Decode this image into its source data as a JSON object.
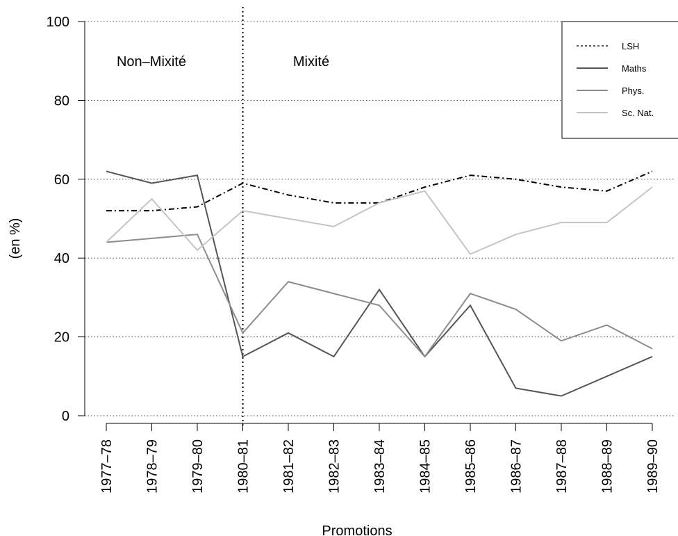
{
  "chart_data": {
    "type": "line",
    "title": "",
    "xlabel": "Promotions",
    "ylabel": "(en %)",
    "ylim": [
      0,
      100
    ],
    "yticks": [
      0,
      20,
      40,
      60,
      80,
      100
    ],
    "categories": [
      "1977–78",
      "1978–79",
      "1979–80",
      "1980–81",
      "1981–82",
      "1982–83",
      "1983–84",
      "1984–85",
      "1985–86",
      "1986–87",
      "1987–88",
      "1988–89",
      "1989–90"
    ],
    "grid": "horizontal dotted",
    "legend_position": "top-right",
    "divider_after_category": "1980–81",
    "annotations": [
      {
        "text": "Non–Mixité",
        "region": "left"
      },
      {
        "text": "Mixité",
        "region": "right"
      }
    ],
    "series": [
      {
        "name": "LSH",
        "style": "dotdash",
        "color": "#000000",
        "values": [
          52,
          52,
          53,
          59,
          56,
          54,
          54,
          58,
          61,
          60,
          58,
          57,
          62
        ]
      },
      {
        "name": "Maths",
        "style": "solid",
        "color": "#555555",
        "values": [
          62,
          59,
          61,
          15,
          21,
          15,
          32,
          15,
          28,
          7,
          5,
          10,
          15
        ]
      },
      {
        "name": "Phys.",
        "style": "solid",
        "color": "#8c8c8c",
        "values": [
          44,
          45,
          46,
          21,
          34,
          31,
          28,
          15,
          31,
          27,
          19,
          23,
          17
        ]
      },
      {
        "name": "Sc. Nat.",
        "style": "solid",
        "color": "#c4c4c4",
        "values": [
          44,
          55,
          42,
          52,
          50,
          48,
          54,
          57,
          41,
          46,
          49,
          49,
          58
        ]
      }
    ]
  }
}
